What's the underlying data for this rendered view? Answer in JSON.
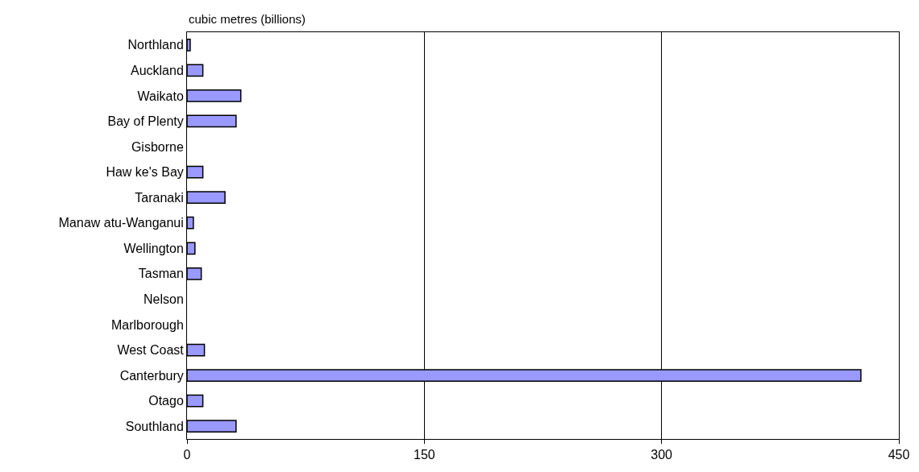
{
  "chart_data": {
    "type": "bar",
    "orientation": "horizontal",
    "xlabel": "cubic metres (billions)",
    "categories": [
      "Northland",
      "Auckland",
      "Waikato",
      "Bay of Plenty",
      "Gisborne",
      "Haw ke's Bay",
      "Taranaki",
      "Manaw atu-Wanganui",
      "Wellington",
      "Tasman",
      "Nelson",
      "Marlborough",
      "West Coast",
      "Canterbury",
      "Otago",
      "Southland"
    ],
    "values": [
      2,
      10,
      34,
      31,
      null,
      10,
      24,
      4,
      5,
      9,
      null,
      null,
      11,
      426,
      10,
      31
    ],
    "color": "#9999ff",
    "xlim": [
      0,
      450
    ],
    "xticks": [
      0,
      150,
      300,
      450
    ],
    "grid": "x",
    "legend": false
  }
}
